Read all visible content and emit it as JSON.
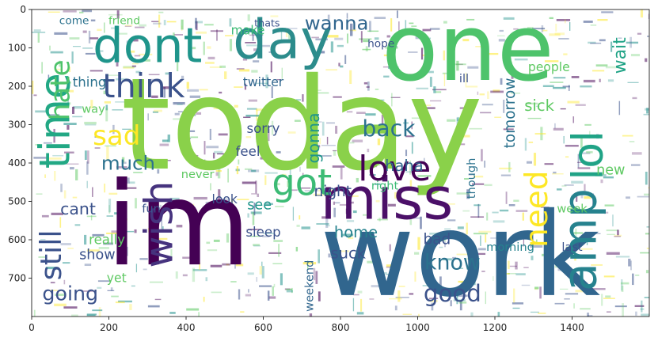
{
  "chart_data": {
    "type": "wordcloud",
    "xlim": [
      0,
      1600
    ],
    "ylim": [
      800,
      0
    ],
    "xticks": [
      0,
      200,
      400,
      600,
      800,
      1000,
      1200,
      1400
    ],
    "yticks": [
      0,
      100,
      200,
      300,
      400,
      500,
      600,
      700
    ],
    "palette": [
      "#440154",
      "#3b528b",
      "#21918c",
      "#5ec962",
      "#fde725"
    ],
    "words": [
      {
        "text": "today",
        "x": 700,
        "y": 300,
        "size": 330,
        "color": "#8ad14a",
        "rot": 0
      },
      {
        "text": "im",
        "x": 380,
        "y": 560,
        "size": 300,
        "color": "#440154",
        "rot": 0
      },
      {
        "text": "work",
        "x": 1110,
        "y": 640,
        "size": 300,
        "color": "#31668e",
        "rot": 0
      },
      {
        "text": "one",
        "x": 1130,
        "y": 100,
        "size": 240,
        "color": "#4ec36b",
        "rot": 0
      },
      {
        "text": "miss",
        "x": 920,
        "y": 495,
        "size": 150,
        "color": "#4b1068",
        "rot": 0
      },
      {
        "text": "dont",
        "x": 300,
        "y": 95,
        "size": 125,
        "color": "#1f958b",
        "rot": 0
      },
      {
        "text": "day",
        "x": 650,
        "y": 80,
        "size": 140,
        "color": "#2c8c8c",
        "rot": 0
      },
      {
        "text": "amp",
        "x": 1420,
        "y": 600,
        "size": 120,
        "color": "#26828e",
        "rot": -90
      },
      {
        "text": "lol",
        "x": 1440,
        "y": 380,
        "size": 110,
        "color": "#20a386",
        "rot": -90
      },
      {
        "text": "time",
        "x": 60,
        "y": 290,
        "size": 110,
        "color": "#22a884",
        "rot": -90
      },
      {
        "text": "wish",
        "x": 330,
        "y": 560,
        "size": 100,
        "color": "#46337e",
        "rot": -90
      },
      {
        "text": "got",
        "x": 700,
        "y": 450,
        "size": 95,
        "color": "#3cbb75",
        "rot": 0
      },
      {
        "text": "love",
        "x": 940,
        "y": 415,
        "size": 90,
        "color": "#440154",
        "rot": 0
      },
      {
        "text": "think",
        "x": 290,
        "y": 200,
        "size": 85,
        "color": "#3b528b",
        "rot": 0
      },
      {
        "text": "hate",
        "x": 75,
        "y": 210,
        "size": 70,
        "color": "#4ec36b",
        "rot": -90
      },
      {
        "text": "still",
        "x": 50,
        "y": 640,
        "size": 75,
        "color": "#3b528b",
        "rot": -90
      },
      {
        "text": "need",
        "x": 1310,
        "y": 520,
        "size": 80,
        "color": "#fde725",
        "rot": -90
      },
      {
        "text": "sad",
        "x": 220,
        "y": 330,
        "size": 70,
        "color": "#fde725",
        "rot": 0
      },
      {
        "text": "good",
        "x": 1090,
        "y": 740,
        "size": 60,
        "color": "#3b528b",
        "rot": 0
      },
      {
        "text": "back",
        "x": 925,
        "y": 310,
        "size": 58,
        "color": "#2c728e",
        "rot": 0
      },
      {
        "text": "wanna",
        "x": 790,
        "y": 35,
        "size": 50,
        "color": "#31668e",
        "rot": 0
      },
      {
        "text": "know",
        "x": 1090,
        "y": 660,
        "size": 55,
        "color": "#2c728e",
        "rot": 0
      },
      {
        "text": "going",
        "x": 100,
        "y": 740,
        "size": 52,
        "color": "#3b528b",
        "rot": 0
      },
      {
        "text": "much",
        "x": 250,
        "y": 400,
        "size": 50,
        "color": "#2c728e",
        "rot": 0
      },
      {
        "text": "gonna",
        "x": 730,
        "y": 335,
        "size": 42,
        "color": "#1f958b",
        "rot": -90
      },
      {
        "text": "tomorrow",
        "x": 1240,
        "y": 270,
        "size": 38,
        "color": "#2c728e",
        "rot": -90
      },
      {
        "text": "night",
        "x": 780,
        "y": 475,
        "size": 38,
        "color": "#3b528b",
        "rot": 0
      },
      {
        "text": "haha",
        "x": 965,
        "y": 407,
        "size": 40,
        "color": "#31668e",
        "rot": 0
      },
      {
        "text": "wait",
        "x": 1525,
        "y": 120,
        "size": 45,
        "color": "#20a386",
        "rot": -90
      },
      {
        "text": "cant",
        "x": 120,
        "y": 520,
        "size": 42,
        "color": "#3b528b",
        "rot": 0
      },
      {
        "text": "home",
        "x": 840,
        "y": 580,
        "size": 40,
        "color": "#26828e",
        "rot": 0
      },
      {
        "text": "suck",
        "x": 820,
        "y": 635,
        "size": 40,
        "color": "#3b528b",
        "rot": 0
      },
      {
        "text": "sick",
        "x": 1315,
        "y": 250,
        "size": 40,
        "color": "#5ec962",
        "rot": 0
      },
      {
        "text": "twitter",
        "x": 600,
        "y": 190,
        "size": 32,
        "color": "#31668e",
        "rot": 0
      },
      {
        "text": "people",
        "x": 1340,
        "y": 150,
        "size": 32,
        "color": "#5ec962",
        "rot": 0
      },
      {
        "text": "sleep",
        "x": 600,
        "y": 580,
        "size": 34,
        "color": "#3b528b",
        "rot": 0
      },
      {
        "text": "weekend",
        "x": 720,
        "y": 720,
        "size": 30,
        "color": "#31668e",
        "rot": -90
      },
      {
        "text": "really",
        "x": 195,
        "y": 600,
        "size": 34,
        "color": "#5ec962",
        "rot": 0
      },
      {
        "text": "show",
        "x": 170,
        "y": 640,
        "size": 36,
        "color": "#3b528b",
        "rot": 0
      },
      {
        "text": "thing",
        "x": 150,
        "y": 190,
        "size": 34,
        "color": "#2c728e",
        "rot": 0
      },
      {
        "text": "sorry",
        "x": 600,
        "y": 310,
        "size": 34,
        "color": "#3b528b",
        "rot": 0
      },
      {
        "text": "feel",
        "x": 560,
        "y": 370,
        "size": 34,
        "color": "#3b528b",
        "rot": 0
      },
      {
        "text": "make",
        "x": 560,
        "y": 55,
        "size": 32,
        "color": "#3cbb75",
        "rot": 0
      },
      {
        "text": "week",
        "x": 1400,
        "y": 520,
        "size": 30,
        "color": "#5ec962",
        "rot": 0
      },
      {
        "text": "morning",
        "x": 1240,
        "y": 620,
        "size": 30,
        "color": "#26828e",
        "rot": 0
      },
      {
        "text": "yet",
        "x": 220,
        "y": 700,
        "size": 32,
        "color": "#5ec962",
        "rot": 0
      },
      {
        "text": "bad",
        "x": 1050,
        "y": 600,
        "size": 38,
        "color": "#3b528b",
        "rot": 0
      },
      {
        "text": "look",
        "x": 500,
        "y": 495,
        "size": 32,
        "color": "#3b528b",
        "rot": 0
      },
      {
        "text": "see",
        "x": 590,
        "y": 510,
        "size": 36,
        "color": "#1f958b",
        "rot": 0
      },
      {
        "text": "fun",
        "x": 310,
        "y": 520,
        "size": 30,
        "color": "#3b528b",
        "rot": 0
      },
      {
        "text": "way",
        "x": 160,
        "y": 260,
        "size": 30,
        "color": "#5ec962",
        "rot": 0
      },
      {
        "text": "new",
        "x": 1500,
        "y": 420,
        "size": 36,
        "color": "#5ec962",
        "rot": 0
      },
      {
        "text": "never",
        "x": 430,
        "y": 430,
        "size": 30,
        "color": "#5ec962",
        "rot": 0
      },
      {
        "text": "come",
        "x": 110,
        "y": 30,
        "size": 28,
        "color": "#2c728e",
        "rot": 0
      },
      {
        "text": "friend",
        "x": 240,
        "y": 30,
        "size": 28,
        "color": "#5ec962",
        "rot": 0
      },
      {
        "text": "thats",
        "x": 610,
        "y": 35,
        "size": 26,
        "color": "#3b528b",
        "rot": 0
      },
      {
        "text": "hope",
        "x": 905,
        "y": 90,
        "size": 28,
        "color": "#3b528b",
        "rot": 0
      },
      {
        "text": "last",
        "x": 1400,
        "y": 620,
        "size": 30,
        "color": "#3b528b",
        "rot": 0
      },
      {
        "text": "ill",
        "x": 1120,
        "y": 180,
        "size": 30,
        "color": "#3b528b",
        "rot": 0
      },
      {
        "text": "though",
        "x": 1140,
        "y": 440,
        "size": 30,
        "color": "#2c728e",
        "rot": -90
      },
      {
        "text": "right",
        "x": 915,
        "y": 460,
        "size": 30,
        "color": "#3cbb75",
        "rot": 0
      }
    ]
  }
}
